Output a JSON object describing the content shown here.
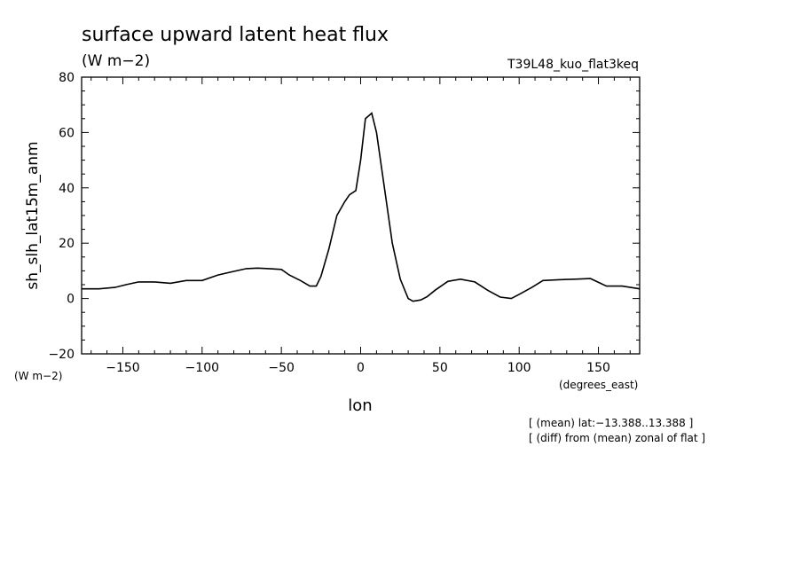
{
  "chart_data": {
    "type": "line",
    "title": "surface upward latent heat flux",
    "title_units": "(W m−2)",
    "experiment": "T39L48_kuo_flat3keq",
    "ylabel": "sh_slh_lat15m_anm",
    "yunits": "(W m−2)",
    "xlabel": "lon",
    "xunits": "(degrees_east)",
    "xlim": [
      -176,
      176
    ],
    "ylim": [
      -20,
      80
    ],
    "xticks": [
      -150,
      -100,
      -50,
      0,
      50,
      100,
      150
    ],
    "xtick_labels": [
      "−150",
      "−100",
      "−50",
      "0",
      "50",
      "100",
      "150"
    ],
    "yticks": [
      -20,
      0,
      20,
      40,
      60,
      80
    ],
    "ytick_labels": [
      "−20",
      "0",
      "20",
      "40",
      "60",
      "80"
    ],
    "grid": false,
    "notes": [
      "[ (mean) lat:−13.388..13.388 ]",
      "[ (diff) from (mean) zonal of flat ]"
    ],
    "series": [
      {
        "x": [
          -176,
          -165,
          -155,
          -148,
          -140,
          -130,
          -120,
          -110,
          -100,
          -90,
          -80,
          -72,
          -65,
          -58,
          -50,
          -45,
          -38,
          -32,
          -28,
          -25,
          -20,
          -15,
          -10,
          -7,
          -3,
          0,
          3,
          7,
          10,
          15,
          20,
          25,
          30,
          33,
          38,
          42,
          47,
          55,
          63,
          72,
          80,
          88,
          95,
          100,
          108,
          115,
          125,
          135,
          145,
          155,
          165,
          176
        ],
        "y": [
          3.5,
          3.5,
          4,
          5,
          6,
          6,
          5.5,
          6.5,
          6.5,
          8.5,
          9.8,
          10.8,
          11,
          10.8,
          10.5,
          8.5,
          6.5,
          4.5,
          4.5,
          8,
          18,
          30,
          35,
          37.5,
          39,
          50,
          65,
          67,
          60,
          40,
          20,
          7,
          0,
          -1,
          -0.5,
          0.7,
          3,
          6.2,
          7,
          6,
          3,
          0.5,
          0,
          1.5,
          4,
          6.5,
          6.8,
          7,
          7.2,
          4.5,
          4.5,
          3.5
        ]
      }
    ]
  }
}
